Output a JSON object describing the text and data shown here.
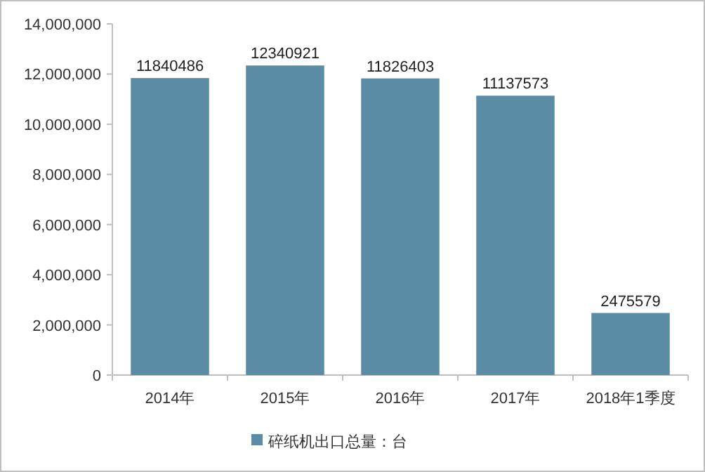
{
  "chart_data": {
    "type": "bar",
    "categories": [
      "2014年",
      "2015年",
      "2016年",
      "2017年",
      "2018年1季度"
    ],
    "series": [
      {
        "name": "碎纸机出口总量：台",
        "color": "#5a8ca6",
        "values": [
          11840486,
          12340921,
          11826403,
          11137573,
          2475579
        ]
      }
    ],
    "ylim": [
      0,
      14000000
    ],
    "yticks": [
      0,
      {
        "value": 2000000,
        "label": "2,000,000"
      },
      {
        "value": 4000000,
        "label": "4,000,000"
      },
      {
        "value": 6000000,
        "label": "6,000,000"
      },
      {
        "value": 8000000,
        "label": "8,000,000"
      },
      {
        "value": 10000000,
        "label": "10,000,000"
      },
      {
        "value": 12000000,
        "label": "12,000,000"
      },
      {
        "value": 14000000,
        "label": "14,000,000"
      }
    ],
    "data_labels": true,
    "legend": "bottom"
  }
}
